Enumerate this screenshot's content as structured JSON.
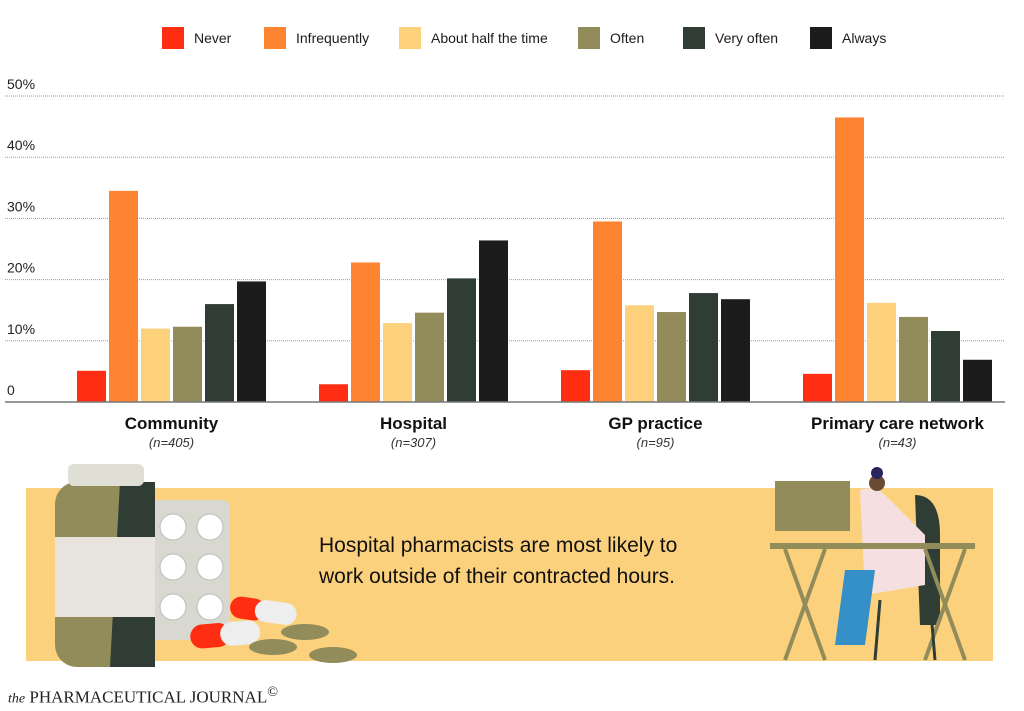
{
  "legend": [
    {
      "label": "Never",
      "color": "#ff2d12"
    },
    {
      "label": "Infrequently",
      "color": "#ff8432"
    },
    {
      "label": "About half the time",
      "color": "#fdd17b"
    },
    {
      "label": "Often",
      "color": "#928c5b"
    },
    {
      "label": "Very often",
      "color": "#2f3d35"
    },
    {
      "label": "Always",
      "color": "#1c1c1c"
    }
  ],
  "chart_data": {
    "type": "bar",
    "title": "",
    "xlabel": "",
    "ylabel": "",
    "ylim": [
      0,
      50
    ],
    "yticks": [
      {
        "value": 0,
        "label": "0"
      },
      {
        "value": 10,
        "label": "10%"
      },
      {
        "value": 20,
        "label": "20%"
      },
      {
        "value": 30,
        "label": "30%"
      },
      {
        "value": 40,
        "label": "40%"
      },
      {
        "value": 50,
        "label": "50%"
      }
    ],
    "grid": true,
    "legend_position": "top",
    "categories": [
      "Community",
      "Hospital",
      "GP practice",
      "Primary care network"
    ],
    "category_notes": [
      "(n=405)",
      "(n=307)",
      "(n=95)",
      "(n=43)"
    ],
    "series": [
      {
        "name": "Never",
        "color": "#ff2d12",
        "values": [
          5.1,
          2.9,
          5.2,
          4.6
        ]
      },
      {
        "name": "Infrequently",
        "color": "#ff8432",
        "values": [
          34.5,
          22.8,
          29.5,
          46.5
        ]
      },
      {
        "name": "About half the time",
        "color": "#fdd17b",
        "values": [
          12.0,
          12.9,
          15.8,
          16.2
        ]
      },
      {
        "name": "Often",
        "color": "#928c5b",
        "values": [
          12.3,
          14.6,
          14.7,
          13.9
        ]
      },
      {
        "name": "Very often",
        "color": "#2f3d35",
        "values": [
          16.0,
          20.2,
          17.8,
          11.6
        ]
      },
      {
        "name": "Always",
        "color": "#1c1c1c",
        "values": [
          19.7,
          26.4,
          16.8,
          6.9
        ]
      }
    ]
  },
  "banner": {
    "line1": "Hospital pharmacists are most likely to",
    "line2": "work outside of their contracted hours.",
    "background": "#fcd17d"
  },
  "footer": {
    "prefix": "the",
    "name": "PHARMACEUTICAL JOURNAL",
    "mark": "©"
  }
}
